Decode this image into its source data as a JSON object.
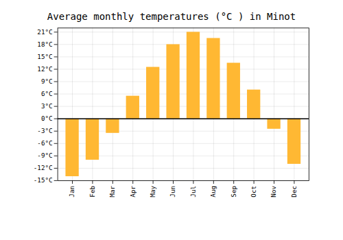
{
  "chart_data": {
    "type": "bar",
    "title": "Average monthly temperatures (°C ) in Minot",
    "categories": [
      "Jan",
      "Feb",
      "Mar",
      "Apr",
      "May",
      "Jun",
      "Jul",
      "Aug",
      "Sep",
      "Oct",
      "Nov",
      "Dec"
    ],
    "values": [
      -14,
      -10,
      -3.5,
      5.5,
      12.5,
      18,
      21,
      19.5,
      13.5,
      7,
      -2.5,
      -11
    ],
    "color": "#FFB833",
    "ylim": [
      -15,
      22
    ],
    "yticks": [
      {
        "value": -15,
        "label": "-15°C"
      },
      {
        "value": -12,
        "label": "-12°C"
      },
      {
        "value": -9,
        "label": "-9°C"
      },
      {
        "value": -6,
        "label": "-6°C"
      },
      {
        "value": -3,
        "label": "-3°C"
      },
      {
        "value": 0,
        "label": "0°C"
      },
      {
        "value": 3,
        "label": "3°C"
      },
      {
        "value": 6,
        "label": "6°C"
      },
      {
        "value": 9,
        "label": "9°C"
      },
      {
        "value": 12,
        "label": "12°C"
      },
      {
        "value": 15,
        "label": "15°C"
      },
      {
        "value": 18,
        "label": "18°C"
      },
      {
        "value": 21,
        "label": "21°C"
      }
    ],
    "grid": true
  }
}
